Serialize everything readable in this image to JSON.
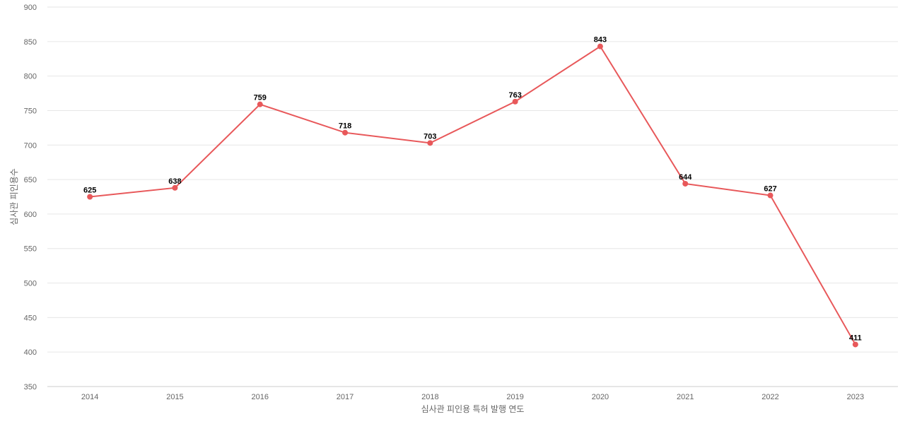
{
  "chart_data": {
    "type": "line",
    "title": "",
    "xlabel": "심사관 피인용 특허 발행 연도",
    "ylabel": "심사관 피인용수",
    "categories": [
      "2014",
      "2015",
      "2016",
      "2017",
      "2018",
      "2019",
      "2020",
      "2021",
      "2022",
      "2023"
    ],
    "series": [
      {
        "values": [
          625,
          638,
          759,
          718,
          703,
          763,
          843,
          644,
          627,
          411
        ]
      }
    ],
    "ylim": [
      350,
      900
    ],
    "yticks": [
      350,
      400,
      450,
      500,
      550,
      600,
      650,
      700,
      750,
      800,
      850,
      900
    ],
    "grid": true,
    "legend": "none",
    "data_labels": true,
    "colors": {
      "line": "#e8585a",
      "point": "#e8585a"
    }
  }
}
